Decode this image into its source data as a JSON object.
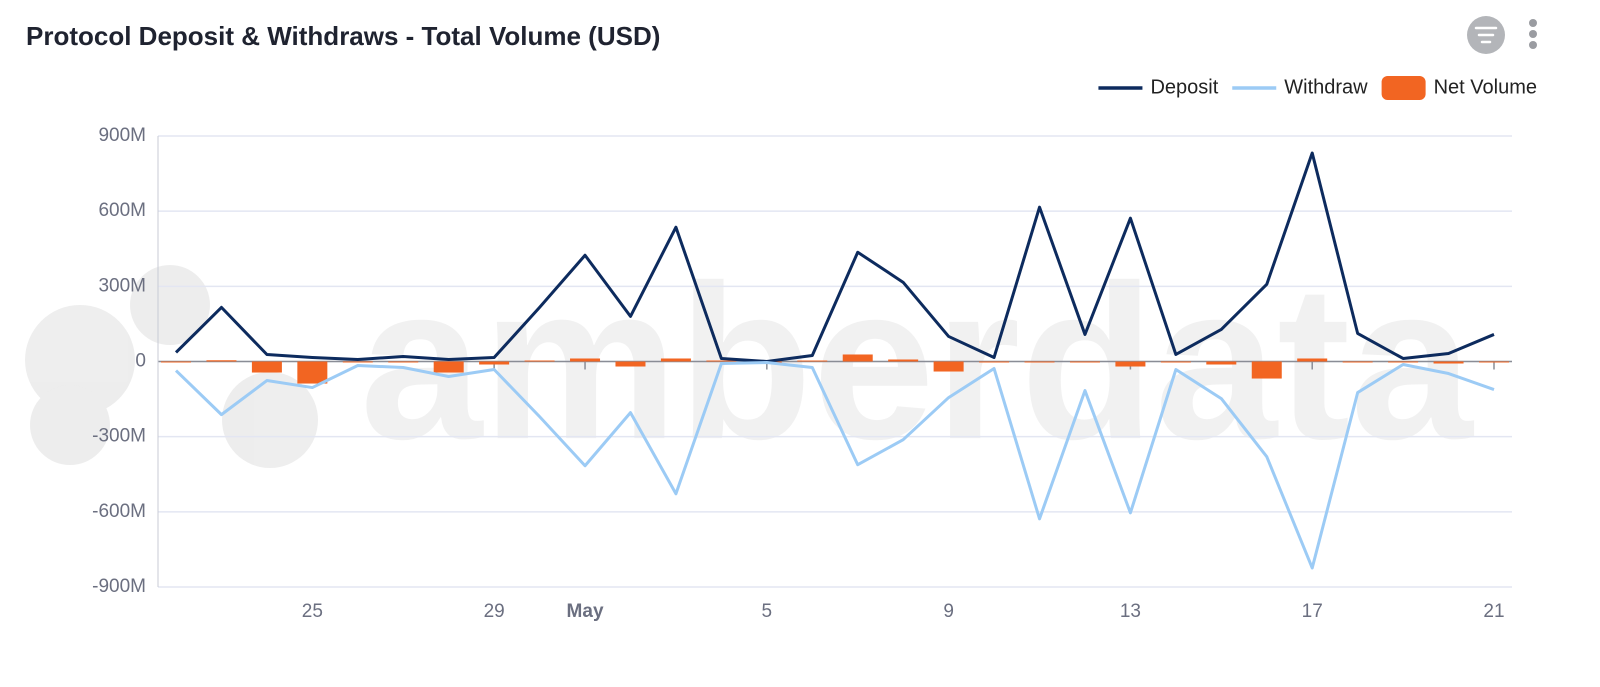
{
  "chart_data": {
    "type": "line",
    "title": "Protocol Deposit & Withdraws - Total Volume (USD)",
    "watermark": "amberdata",
    "categories": [
      null,
      null,
      null,
      "25",
      null,
      null,
      null,
      "29",
      null,
      "May",
      null,
      null,
      null,
      "5",
      null,
      null,
      null,
      "9",
      null,
      null,
      null,
      "13",
      null,
      null,
      null,
      "17",
      null,
      null,
      null,
      "21"
    ],
    "series": [
      {
        "name": "Deposit",
        "type": "line",
        "color": "#0d2b5e",
        "values": [
          36,
          216,
          28,
          16,
          8,
          20,
          8,
          16,
          216,
          424,
          180,
          536,
          12,
          0,
          24,
          436,
          316,
          100,
          16,
          616,
          108,
          572,
          28,
          128,
          308,
          832,
          112,
          12,
          32,
          108
        ]
      },
      {
        "name": "Withdraw",
        "type": "line",
        "color": "#9ccbf5",
        "values": [
          -36,
          -212,
          -76,
          -104,
          -16,
          -24,
          -60,
          -32,
          -220,
          -416,
          -204,
          -528,
          -8,
          -4,
          -24,
          -412,
          -312,
          -144,
          -28,
          -628,
          -116,
          -604,
          -32,
          -148,
          -380,
          -824,
          -124,
          -12,
          -48,
          -112
        ]
      },
      {
        "name": "Net Volume",
        "type": "bar",
        "color": "#f26522",
        "values": [
          -1,
          5,
          -44,
          -88,
          0,
          0,
          -44,
          -12,
          4,
          12,
          -20,
          12,
          4,
          0,
          4,
          28,
          8,
          -40,
          -4,
          -4,
          -4,
          -20,
          0,
          -12,
          -68,
          12,
          -4,
          0,
          -8,
          0
        ]
      }
    ],
    "ylim": [
      -900,
      900
    ],
    "yticks": [
      {
        "value": -900,
        "label": "-900M"
      },
      {
        "value": -600,
        "label": "-600M"
      },
      {
        "value": -300,
        "label": "-300M"
      },
      0,
      {
        "value": 300,
        "label": "300M"
      },
      {
        "value": 600,
        "label": "600M"
      },
      {
        "value": 900,
        "label": "900M"
      }
    ],
    "grid": true
  }
}
